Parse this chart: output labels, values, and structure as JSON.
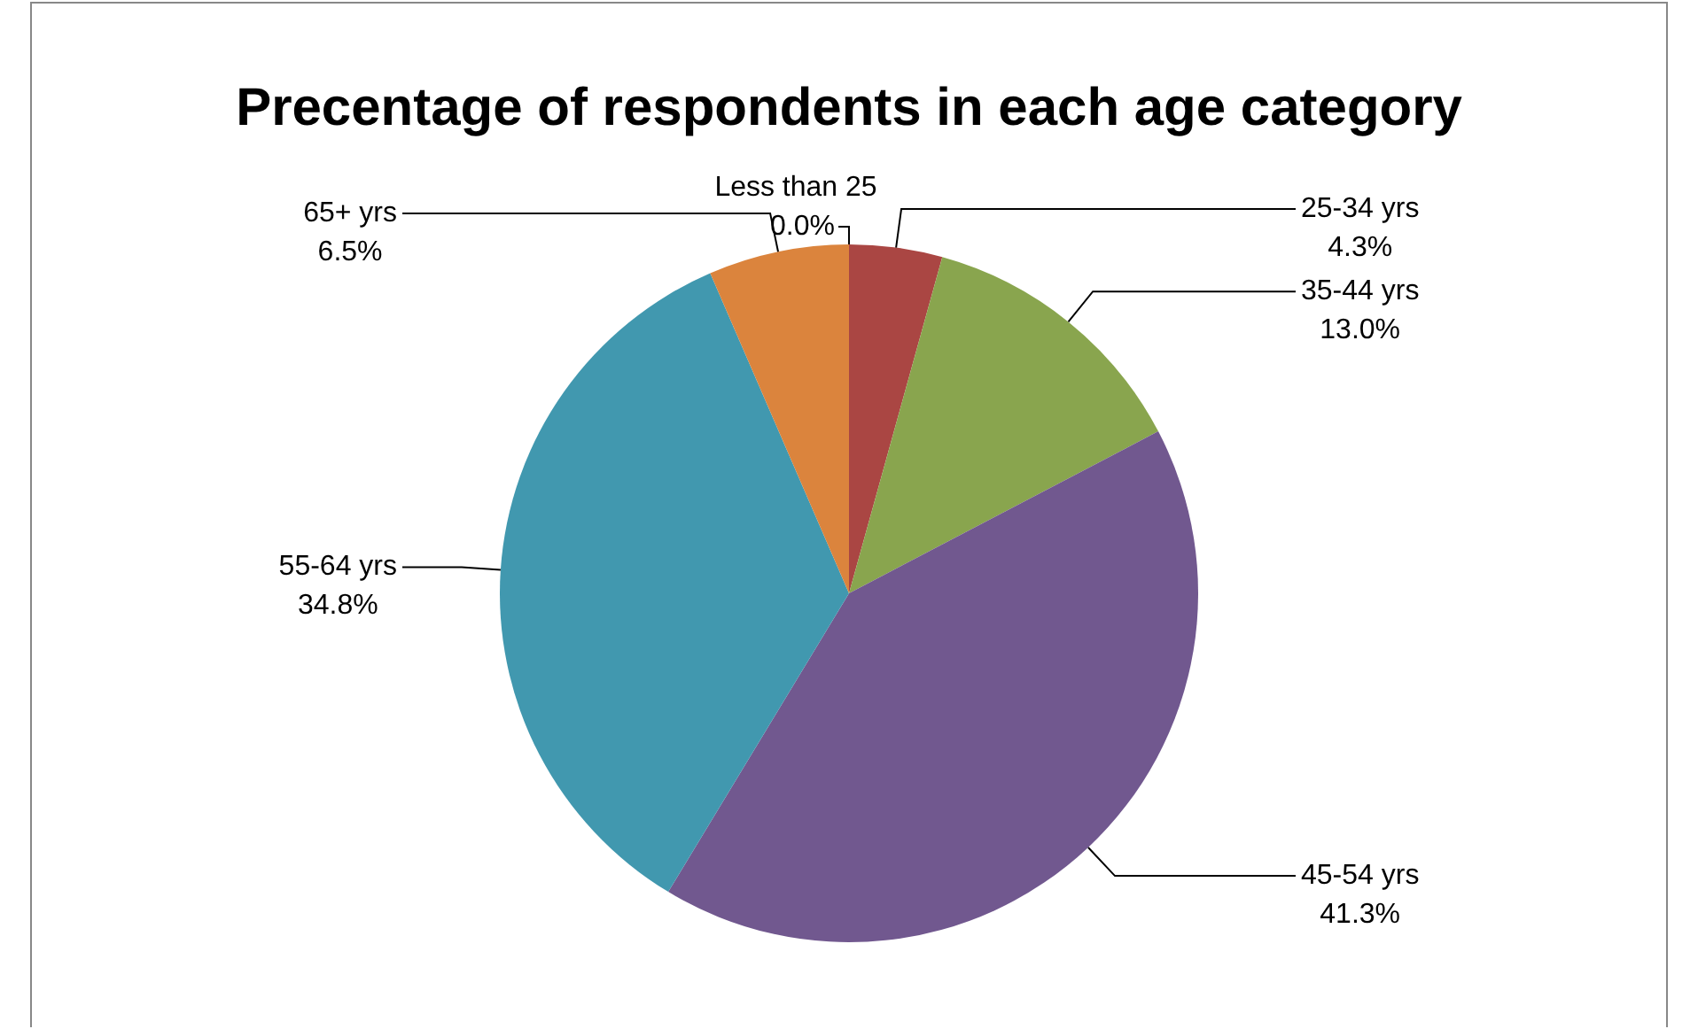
{
  "chart_data": {
    "type": "pie",
    "title": "Precentage of respondents in each age category",
    "categories": [
      "Less than 25",
      "25-34 yrs",
      "35-44 yrs",
      "45-54 yrs",
      "55-64 yrs",
      "65+ yrs"
    ],
    "values": [
      0.0,
      4.3,
      13.0,
      41.3,
      34.8,
      6.5
    ],
    "colors": [
      "#4f81bd",
      "#aa4643",
      "#89a54e",
      "#71588f",
      "#4198af",
      "#db843d"
    ],
    "value_labels": [
      "0.0%",
      "4.3%",
      "13.0%",
      "41.3%",
      "34.8%",
      "6.5%"
    ],
    "legend": false
  }
}
